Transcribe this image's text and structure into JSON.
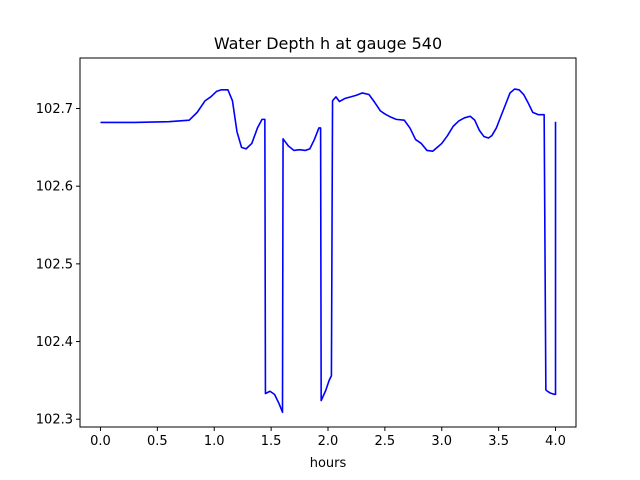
{
  "chart_data": {
    "type": "line",
    "title": "Water Depth h at gauge 540",
    "xlabel": "hours",
    "ylabel": "",
    "xlim": [
      -0.18,
      4.18
    ],
    "ylim": [
      102.29,
      102.765
    ],
    "xticks": [
      0.0,
      0.5,
      1.0,
      1.5,
      2.0,
      2.5,
      3.0,
      3.5,
      4.0
    ],
    "xtick_labels": [
      "0.0",
      "0.5",
      "1.0",
      "1.5",
      "2.0",
      "2.5",
      "3.0",
      "3.5",
      "4.0"
    ],
    "yticks": [
      102.3,
      102.4,
      102.5,
      102.6,
      102.7
    ],
    "ytick_labels": [
      "102.3",
      "102.4",
      "102.5",
      "102.6",
      "102.7"
    ],
    "grid": false,
    "series": [
      {
        "color": "#0000ff",
        "x": [
          0.0,
          0.3,
          0.6,
          0.78,
          0.85,
          0.92,
          0.97,
          1.02,
          1.06,
          1.12,
          1.16,
          1.2,
          1.24,
          1.28,
          1.33,
          1.38,
          1.42,
          1.445,
          1.45,
          1.49,
          1.53,
          1.57,
          1.6,
          1.605,
          1.65,
          1.7,
          1.75,
          1.8,
          1.84,
          1.88,
          1.92,
          1.935,
          1.94,
          1.98,
          2.01,
          2.03,
          2.04,
          2.07,
          2.1,
          2.15,
          2.2,
          2.25,
          2.3,
          2.36,
          2.41,
          2.46,
          2.5,
          2.55,
          2.6,
          2.67,
          2.72,
          2.77,
          2.82,
          2.87,
          2.92,
          2.96,
          3.0,
          3.05,
          3.1,
          3.15,
          3.2,
          3.25,
          3.29,
          3.33,
          3.37,
          3.41,
          3.44,
          3.48,
          3.52,
          3.56,
          3.6,
          3.64,
          3.68,
          3.72,
          3.76,
          3.8,
          3.85,
          3.9,
          3.915,
          3.92,
          3.95,
          3.99,
          4.0,
          4.0
        ],
        "y": [
          102.682,
          102.682,
          102.683,
          102.685,
          102.695,
          102.71,
          102.715,
          102.722,
          102.724,
          102.724,
          102.71,
          102.67,
          102.65,
          102.648,
          102.655,
          102.675,
          102.686,
          102.686,
          102.333,
          102.336,
          102.332,
          102.32,
          102.309,
          102.661,
          102.652,
          102.646,
          102.647,
          102.646,
          102.648,
          102.66,
          102.675,
          102.675,
          102.324,
          102.337,
          102.35,
          102.356,
          102.71,
          102.715,
          102.709,
          102.713,
          102.715,
          102.717,
          102.72,
          102.718,
          102.708,
          102.697,
          102.693,
          102.689,
          102.686,
          102.685,
          102.675,
          102.66,
          102.655,
          102.646,
          102.645,
          102.65,
          102.655,
          102.665,
          102.677,
          102.684,
          102.688,
          102.69,
          102.685,
          102.672,
          102.664,
          102.662,
          102.665,
          102.675,
          102.69,
          102.705,
          102.72,
          102.725,
          102.724,
          102.718,
          102.707,
          102.695,
          102.692,
          102.692,
          102.338,
          102.337,
          102.334,
          102.332,
          102.332,
          102.683
        ]
      }
    ]
  }
}
